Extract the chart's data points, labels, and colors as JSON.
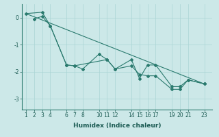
{
  "title": "",
  "xlabel": "Humidex (Indice chaleur)",
  "ylabel": "",
  "background_color": "#cce8e8",
  "grid_color": "#aad4d4",
  "line_color": "#2a7a6e",
  "marker": "D",
  "markersize": 2,
  "linewidth": 0.8,
  "xlim": [
    0.5,
    24
  ],
  "ylim": [
    -3.4,
    0.5
  ],
  "xticks": [
    1,
    2,
    3,
    4,
    6,
    7,
    8,
    10,
    11,
    12,
    14,
    15,
    16,
    17,
    19,
    20,
    21,
    23
  ],
  "yticks": [
    0,
    -1,
    -2,
    -3
  ],
  "series": [
    {
      "x": [
        1,
        3,
        4,
        6,
        7,
        8,
        10,
        11,
        12,
        14,
        15,
        16,
        17,
        19,
        20,
        21,
        23
      ],
      "y": [
        0.15,
        0.2,
        -0.3,
        -1.75,
        -1.78,
        -1.9,
        -1.35,
        -1.55,
        -1.9,
        -1.55,
        -2.25,
        -1.75,
        -1.75,
        -2.55,
        -2.55,
        -2.3,
        -2.45
      ]
    },
    {
      "x": [
        2,
        3,
        4,
        6,
        7,
        11,
        12,
        14,
        15,
        16,
        17,
        19,
        20,
        21,
        23
      ],
      "y": [
        -0.05,
        0.05,
        -0.3,
        -1.75,
        -1.78,
        -1.55,
        -1.9,
        -1.78,
        -2.1,
        -2.15,
        -2.15,
        -2.65,
        -2.65,
        -2.3,
        -2.45
      ]
    },
    {
      "x": [
        1,
        23
      ],
      "y": [
        0.15,
        -2.45
      ]
    }
  ],
  "xlabel_fontsize": 6.5,
  "tick_fontsize": 5.5
}
